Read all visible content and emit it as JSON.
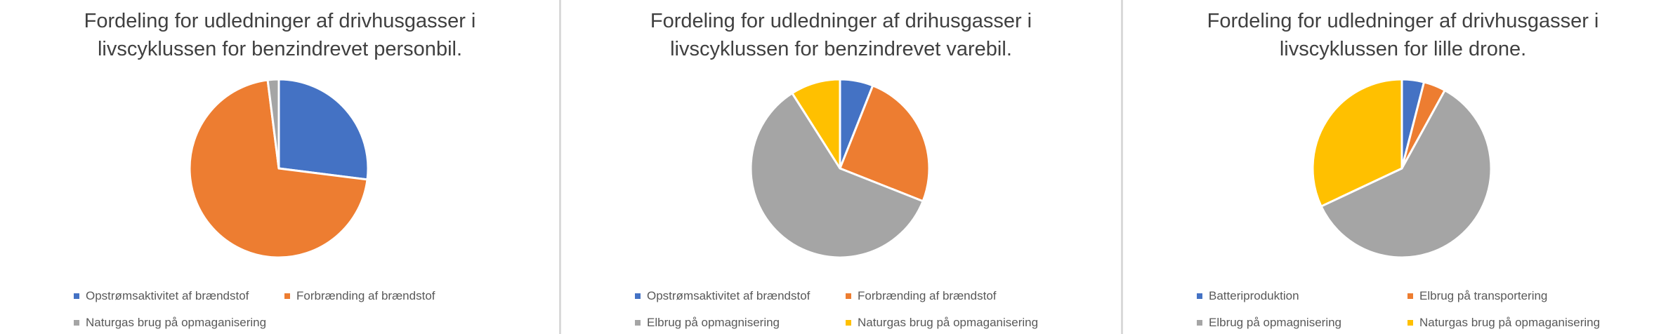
{
  "chart_data": [
    {
      "type": "pie",
      "title": [
        "Fordeling for udledninger af drivhusgasser i",
        "livscyklussen for benzindrevet personbil."
      ],
      "legend_position": "bottom",
      "slices": [
        {
          "name": "Opstrømsaktivitet af brændstof",
          "value": 27,
          "color": "#4472C4"
        },
        {
          "name": "Forbrænding af brændstof",
          "value": 71,
          "color": "#ED7D31"
        },
        {
          "name": "Naturgas brug på opmaganisering",
          "value": 2,
          "color": "#A5A5A5"
        }
      ]
    },
    {
      "type": "pie",
      "title": [
        "Fordeling for udledninger af drihusgasser i",
        "livscyklussen for benzindrevet varebil."
      ],
      "legend_position": "bottom",
      "slices": [
        {
          "name": "Opstrømsaktivitet af brændstof",
          "value": 6,
          "color": "#4472C4"
        },
        {
          "name": "Forbrænding af brændstof",
          "value": 25,
          "color": "#ED7D31"
        },
        {
          "name": "Elbrug på opmagnisering",
          "value": 60,
          "color": "#A5A5A5"
        },
        {
          "name": "Naturgas brug på opmaganisering",
          "value": 9,
          "color": "#FFC000"
        }
      ]
    },
    {
      "type": "pie",
      "title": [
        "Fordeling for udledninger af drivhusgasser i",
        "livscyklussen for lille drone."
      ],
      "legend_position": "bottom",
      "slices": [
        {
          "name": "Batteriproduktion",
          "value": 4,
          "color": "#4472C4"
        },
        {
          "name": "Elbrug på transportering",
          "value": 4,
          "color": "#ED7D31"
        },
        {
          "name": "Elbrug på opmagnisering",
          "value": 60,
          "color": "#A5A5A5"
        },
        {
          "name": "Naturgas brug på opmaganisering",
          "value": 32,
          "color": "#FFC000"
        }
      ]
    }
  ]
}
